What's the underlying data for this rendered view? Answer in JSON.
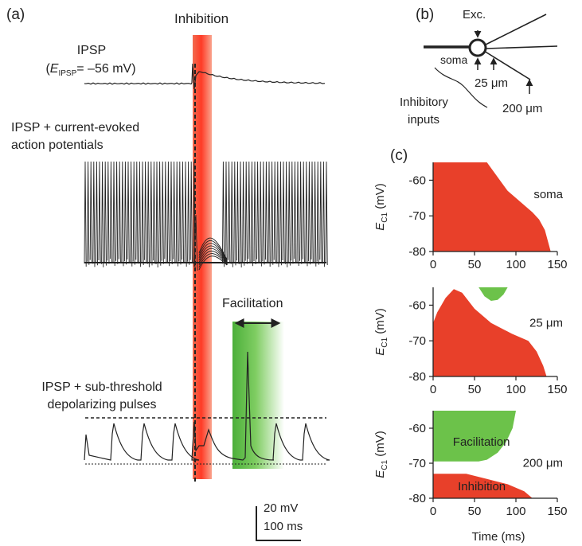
{
  "panel_a": {
    "label": "(a)",
    "inhibition_label": "Inhibition",
    "ipsp_label_line1": "IPSP",
    "ipsp_label_line2_E": "E",
    "ipsp_label_line2_sub": "IPSP",
    "ipsp_label_line2_rest": "= –56 mV)",
    "trace2_line1": "IPSP + current-evoked",
    "trace2_line2": "action potentials",
    "facilitation_label": "Facilitation",
    "trace3_line1": "IPSP + sub-threshold",
    "trace3_line2": "depolarizing pulses",
    "scalebar_v": "20 mV",
    "scalebar_t": "100 ms"
  },
  "panel_b": {
    "label": "(b)",
    "exc": "Exc.",
    "soma": "soma",
    "d25": "25 μm",
    "d200": "200 μm",
    "inhib_line1": "Inhibitory",
    "inhib_line2": "inputs"
  },
  "panel_c": {
    "label": "(c)",
    "ylabel_E": "E",
    "ylabel_sub": "C1",
    "ylabel_unit": " (mV)",
    "xlabel": "Time (ms)"
  },
  "colors": {
    "inhibition": "#e8402a",
    "facilitation": "#6cc24a",
    "trace": "#222222"
  },
  "chart_data": [
    {
      "type": "area",
      "title": "soma",
      "xlim": [
        0,
        150
      ],
      "ylim": [
        -80,
        -55
      ],
      "xticks": [
        0,
        50,
        100,
        150
      ],
      "yticks": [
        -60,
        -70,
        -80
      ],
      "regions": [
        {
          "label": "",
          "color": "#e8402a",
          "points": [
            [
              0,
              -55
            ],
            [
              65,
              -55
            ],
            [
              90,
              -63
            ],
            [
              120,
              -69
            ],
            [
              128,
              -71
            ],
            [
              135,
              -74
            ],
            [
              142,
              -80
            ],
            [
              0,
              -80
            ]
          ]
        }
      ]
    },
    {
      "type": "area",
      "title": "25 μm",
      "xlim": [
        0,
        150
      ],
      "ylim": [
        -80,
        -55
      ],
      "xticks": [
        0,
        50,
        100,
        150
      ],
      "yticks": [
        -60,
        -70,
        -80
      ],
      "regions": [
        {
          "label": "",
          "color": "#e8402a",
          "points": [
            [
              0,
              -65
            ],
            [
              5,
              -62
            ],
            [
              15,
              -58
            ],
            [
              25,
              -55.5
            ],
            [
              35,
              -56.5
            ],
            [
              50,
              -61
            ],
            [
              70,
              -65
            ],
            [
              95,
              -68
            ],
            [
              115,
              -70
            ],
            [
              125,
              -73
            ],
            [
              133,
              -77
            ],
            [
              137,
              -80
            ],
            [
              0,
              -80
            ]
          ]
        },
        {
          "label": "",
          "color": "#6cc24a",
          "points": [
            [
              55,
              -55
            ],
            [
              62,
              -57.5
            ],
            [
              70,
              -58.8
            ],
            [
              78,
              -58.5
            ],
            [
              85,
              -57
            ],
            [
              90,
              -55
            ]
          ]
        }
      ]
    },
    {
      "type": "area",
      "title": "200 μm",
      "xlim": [
        0,
        150
      ],
      "ylim": [
        -80,
        -55
      ],
      "xticks": [
        0,
        50,
        100,
        150
      ],
      "yticks": [
        -60,
        -70,
        -80
      ],
      "regions": [
        {
          "label": "Facilitation",
          "color": "#6cc24a",
          "points": [
            [
              0,
              -55
            ],
            [
              100,
              -55
            ],
            [
              96,
              -60
            ],
            [
              88,
              -64
            ],
            [
              78,
              -67
            ],
            [
              65,
              -69
            ],
            [
              55,
              -69.5
            ],
            [
              0,
              -69.5
            ]
          ]
        },
        {
          "label": "Inhibition",
          "color": "#e8402a",
          "points": [
            [
              0,
              -73
            ],
            [
              40,
              -73
            ],
            [
              65,
              -74.5
            ],
            [
              90,
              -76
            ],
            [
              110,
              -78
            ],
            [
              120,
              -80
            ],
            [
              0,
              -80
            ]
          ]
        }
      ]
    }
  ]
}
